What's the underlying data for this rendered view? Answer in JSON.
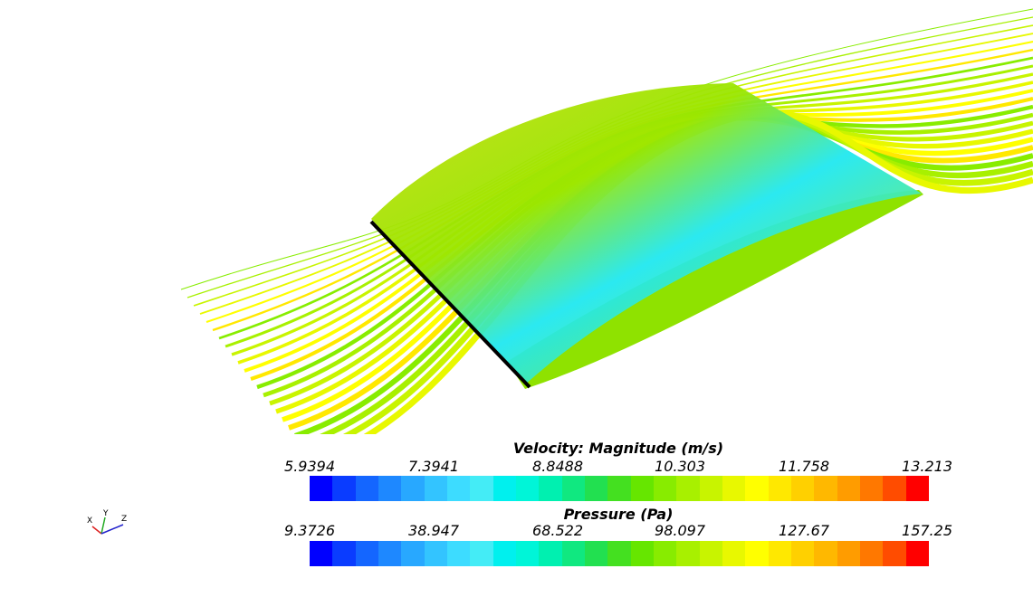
{
  "scene": {
    "name": "airfoil-streamline-visualization"
  },
  "legends": {
    "velocity": {
      "title": "Velocity: Magnitude (m/s)",
      "ticks": [
        "5.9394",
        "7.3941",
        "8.8488",
        "10.303",
        "11.758",
        "13.213"
      ]
    },
    "pressure": {
      "title": "Pressure (Pa)",
      "ticks": [
        "9.3726",
        "38.947",
        "68.522",
        "98.097",
        "127.67",
        "157.25"
      ]
    },
    "colormap": [
      "#0000ff",
      "#0a3cff",
      "#1466ff",
      "#1e88ff",
      "#28a8ff",
      "#33c4ff",
      "#3ddcff",
      "#44ecf6",
      "#00f0ee",
      "#00f5d8",
      "#00f0b0",
      "#10e880",
      "#22e050",
      "#44e020",
      "#66e600",
      "#88ec00",
      "#a8f000",
      "#c8f400",
      "#e8f800",
      "#ffff00",
      "#ffe800",
      "#ffd000",
      "#ffb800",
      "#ff9c00",
      "#ff7800",
      "#ff4c00",
      "#ff0000"
    ]
  },
  "axes": {
    "x": "X",
    "y": "Y",
    "z": "Z"
  }
}
